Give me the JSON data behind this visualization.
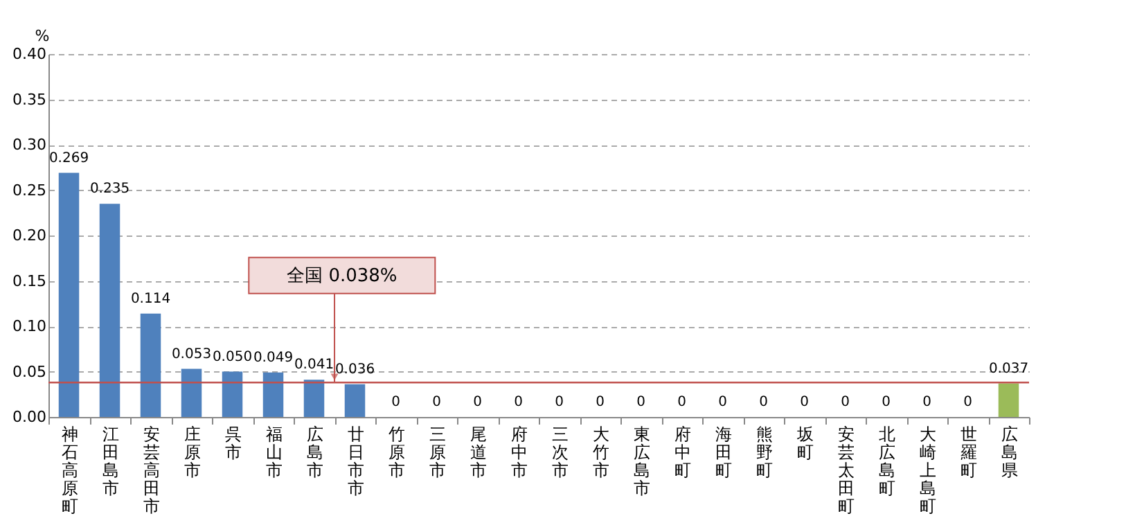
{
  "chart_data": {
    "type": "bar",
    "ylabel": "%",
    "categories": [
      "神石高原町",
      "江田島市",
      "安芸高田市",
      "庄原市",
      "呉市",
      "福山市",
      "広島市",
      "廿日市市",
      "竹原市",
      "三原市",
      "尾道市",
      "府中市",
      "三次市",
      "大竹市",
      "東広島市",
      "府中町",
      "海田町",
      "熊野町",
      "坂町",
      "安芸太田町",
      "北広島町",
      "大崎上島町",
      "世羅町",
      "広島県"
    ],
    "values": [
      0.269,
      0.235,
      0.114,
      0.053,
      0.05,
      0.049,
      0.041,
      0.036,
      0,
      0,
      0,
      0,
      0,
      0,
      0,
      0,
      0,
      0,
      0,
      0,
      0,
      0,
      0,
      0.037
    ],
    "colors": [
      "#4f81bd",
      "#4f81bd",
      "#4f81bd",
      "#4f81bd",
      "#4f81bd",
      "#4f81bd",
      "#4f81bd",
      "#4f81bd",
      "#4f81bd",
      "#4f81bd",
      "#4f81bd",
      "#4f81bd",
      "#4f81bd",
      "#4f81bd",
      "#4f81bd",
      "#4f81bd",
      "#4f81bd",
      "#4f81bd",
      "#4f81bd",
      "#4f81bd",
      "#4f81bd",
      "#4f81bd",
      "#4f81bd",
      "#9bbb59"
    ],
    "value_labels": [
      "0.269",
      "0.235",
      "0.114",
      "0.053",
      "0.050",
      "0.049",
      "0.041",
      "0.036",
      "0",
      "0",
      "0",
      "0",
      "0",
      "0",
      "0",
      "0",
      "0",
      "0",
      "0",
      "0",
      "0",
      "0",
      "0",
      "0.037"
    ],
    "ylim": [
      0,
      0.4
    ],
    "yticks": [
      {
        "value": 0,
        "label": "0.00"
      },
      {
        "value": 0.05,
        "label": "0.05"
      },
      {
        "value": 0.1,
        "label": "0.10"
      },
      {
        "value": 0.15,
        "label": "0.15"
      },
      {
        "value": 0.2,
        "label": "0.20"
      },
      {
        "value": 0.25,
        "label": "0.25"
      },
      {
        "value": 0.3,
        "label": "0.30"
      },
      {
        "value": 0.35,
        "label": "0.35"
      },
      {
        "value": 0.4,
        "label": "0.40"
      }
    ],
    "grid": "y",
    "ref_lines": [
      {
        "axis": "y",
        "value": 0.038,
        "label": "全国  0.038%",
        "color": "#c0504d"
      }
    ]
  }
}
